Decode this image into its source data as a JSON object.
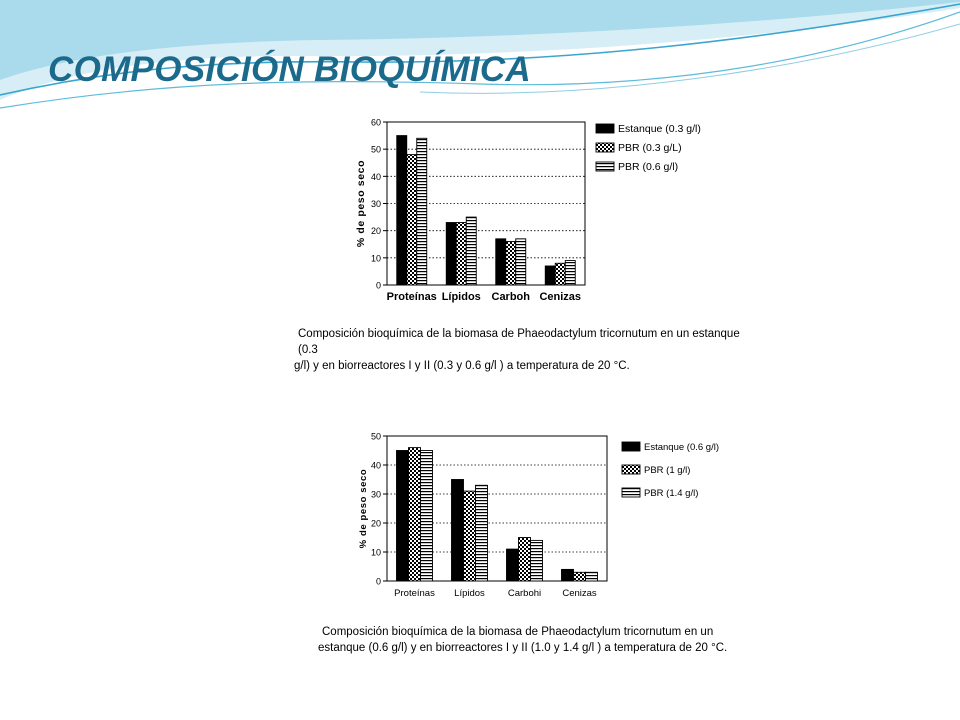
{
  "slide": {
    "title": "COMPOSICIÓN BIOQUÍMICA",
    "colors": {
      "title": "#1b6a8c",
      "banner_light": "#d8eef6",
      "banner_mid": "#8fcde4",
      "banner_dark": "#3aa6cf"
    }
  },
  "chart_data": [
    {
      "type": "bar",
      "ylabel": "% de peso seco",
      "ylim": [
        0,
        60
      ],
      "yticks": [
        0,
        10,
        20,
        30,
        40,
        50,
        60
      ],
      "grid": true,
      "legend_position": "right",
      "categories": [
        "Proteínas",
        "Lípidos",
        "Carboh",
        "Cenizas"
      ],
      "series": [
        {
          "name": "Estanque (0.3 g/l)",
          "pattern": "solid",
          "values": [
            55,
            23,
            17,
            7
          ]
        },
        {
          "name": "PBR (0.3 g/L)",
          "pattern": "checker",
          "values": [
            48,
            23,
            16,
            8
          ]
        },
        {
          "name": "PBR (0.6 g/l)",
          "pattern": "hstripe",
          "values": [
            54,
            25,
            17,
            9
          ]
        }
      ],
      "caption_lines": [
        "Composición bioquímica de la biomasa de  Phaeodactylum tricornutum en un estanque (0.3",
        "g/l) y en  biorreactores I y II (0.3 y 0.6 g/l ) a temperatura de  20 °C."
      ]
    },
    {
      "type": "bar",
      "ylabel": "% de peso seco",
      "ylim": [
        0,
        50
      ],
      "yticks": [
        0,
        10,
        20,
        30,
        40,
        50
      ],
      "grid": true,
      "legend_position": "right",
      "categories": [
        "Proteínas",
        "Lípidos",
        "Carbohi",
        "Cenizas"
      ],
      "series": [
        {
          "name": "Estanque (0.6 g/l)",
          "pattern": "solid",
          "values": [
            45,
            35,
            11,
            4
          ]
        },
        {
          "name": "PBR (1 g/l)",
          "pattern": "checker",
          "values": [
            46,
            31,
            15,
            3
          ]
        },
        {
          "name": "PBR (1.4 g/l)",
          "pattern": "hstripe",
          "values": [
            45,
            33,
            14,
            3
          ]
        }
      ],
      "caption_lines": [
        "Composición bioquímica de la biomasa de  Phaeodactylum tricornutum en un",
        "estanque (0.6 g/l) y en  biorreactores I  y II (1.0 y 1.4 g/l ) a temperatura de  20 °C."
      ]
    }
  ]
}
